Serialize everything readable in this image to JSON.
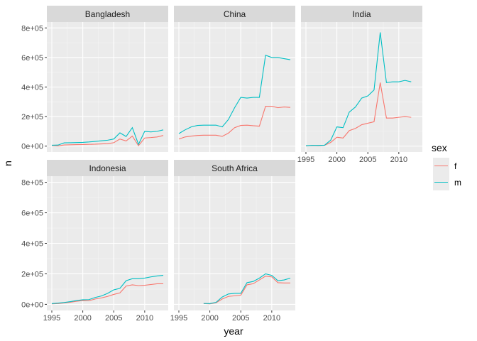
{
  "chart_data": {
    "type": "line",
    "xlabel": "year",
    "ylabel": "n",
    "xlim": [
      1994.2,
      2013.8
    ],
    "ylim": [
      -40000,
      840000
    ],
    "x_ticks": [
      1995,
      2000,
      2005,
      2010
    ],
    "x_tick_labels": [
      "1995",
      "2000",
      "2005",
      "2010"
    ],
    "y_ticks": [
      0,
      200000,
      400000,
      600000,
      800000
    ],
    "y_tick_labels": [
      "0e+00",
      "2e+05",
      "4e+05",
      "6e+05",
      "8e+05"
    ],
    "grid": true,
    "legend": {
      "title": "sex",
      "position": "right",
      "entries": [
        {
          "label": "f",
          "color": "#F8766D"
        },
        {
          "label": "m",
          "color": "#00BFC4"
        }
      ]
    },
    "facets": [
      {
        "name": "Bangladesh",
        "series": [
          {
            "name": "f",
            "color": "#F8766D",
            "x": [
              1995,
              1996,
              1997,
              1998,
              1999,
              2000,
              2001,
              2002,
              2003,
              2004,
              2005,
              2006,
              2007,
              2008,
              2009,
              2010,
              2011,
              2012,
              2013
            ],
            "y": [
              4000,
              2000,
              8000,
              9000,
              10000,
              11000,
              12000,
              13000,
              15000,
              17000,
              23000,
              48000,
              35000,
              68000,
              3000,
              55000,
              58000,
              62000,
              72000
            ]
          },
          {
            "name": "m",
            "color": "#00BFC4",
            "x": [
              1995,
              1996,
              1997,
              1998,
              1999,
              2000,
              2001,
              2002,
              2003,
              2004,
              2005,
              2006,
              2007,
              2008,
              2009,
              2010,
              2011,
              2012,
              2013
            ],
            "y": [
              6000,
              7000,
              22000,
              23000,
              24000,
              25000,
              28000,
              32000,
              36000,
              40000,
              48000,
              90000,
              65000,
              125000,
              12000,
              100000,
              96000,
              100000,
              110000
            ]
          }
        ]
      },
      {
        "name": "China",
        "series": [
          {
            "name": "f",
            "color": "#F8766D",
            "x": [
              1995,
              1996,
              1997,
              1998,
              1999,
              2000,
              2001,
              2002,
              2003,
              2004,
              2005,
              2006,
              2007,
              2008,
              2009,
              2010,
              2011,
              2012,
              2013
            ],
            "y": [
              48000,
              62000,
              68000,
              72000,
              74000,
              74000,
              74000,
              66000,
              88000,
              125000,
              140000,
              142000,
              138000,
              135000,
              270000,
              270000,
              260000,
              265000,
              262000
            ]
          },
          {
            "name": "m",
            "color": "#00BFC4",
            "x": [
              1995,
              1996,
              1997,
              1998,
              1999,
              2000,
              2001,
              2002,
              2003,
              2004,
              2005,
              2006,
              2007,
              2008,
              2009,
              2010,
              2011,
              2012,
              2013
            ],
            "y": [
              85000,
              110000,
              130000,
              140000,
              142000,
              142000,
              142000,
              130000,
              180000,
              260000,
              330000,
              325000,
              330000,
              330000,
              615000,
              600000,
              600000,
              592000,
              585000
            ]
          }
        ]
      },
      {
        "name": "India",
        "series": [
          {
            "name": "f",
            "color": "#F8766D",
            "x": [
              1995,
              1996,
              1997,
              1998,
              1999,
              2000,
              2001,
              2002,
              2003,
              2004,
              2005,
              2006,
              2007,
              2008,
              2009,
              2010,
              2011,
              2012
            ],
            "y": [
              2000,
              4000,
              3000,
              5000,
              25000,
              60000,
              55000,
              105000,
              120000,
              145000,
              155000,
              165000,
              430000,
              190000,
              190000,
              195000,
              200000,
              195000
            ]
          },
          {
            "name": "m",
            "color": "#00BFC4",
            "x": [
              1995,
              1996,
              1997,
              1998,
              1999,
              2000,
              2001,
              2002,
              2003,
              2004,
              2005,
              2006,
              2007,
              2008,
              2009,
              2010,
              2011,
              2012
            ],
            "y": [
              3000,
              5000,
              5000,
              6000,
              40000,
              130000,
              125000,
              230000,
              265000,
              325000,
              340000,
              380000,
              770000,
              430000,
              435000,
              435000,
              445000,
              435000
            ]
          }
        ]
      },
      {
        "name": "Indonesia",
        "series": [
          {
            "name": "f",
            "color": "#F8766D",
            "x": [
              1995,
              1996,
              1997,
              1998,
              1999,
              2000,
              2001,
              2002,
              2003,
              2004,
              2005,
              2006,
              2007,
              2008,
              2009,
              2010,
              2011,
              2012,
              2013
            ],
            "y": [
              3000,
              5000,
              9000,
              14000,
              20000,
              25000,
              24000,
              35000,
              42000,
              52000,
              65000,
              75000,
              120000,
              128000,
              123000,
              125000,
              130000,
              135000,
              135000
            ]
          },
          {
            "name": "m",
            "color": "#00BFC4",
            "x": [
              1995,
              1996,
              1997,
              1998,
              1999,
              2000,
              2001,
              2002,
              2003,
              2004,
              2005,
              2006,
              2007,
              2008,
              2009,
              2010,
              2011,
              2012,
              2013
            ],
            "y": [
              5000,
              8000,
              12000,
              18000,
              25000,
              30000,
              31000,
              45000,
              55000,
              72000,
              95000,
              105000,
              155000,
              168000,
              168000,
              172000,
              180000,
              186000,
              190000
            ]
          }
        ]
      },
      {
        "name": "South Africa",
        "series": [
          {
            "name": "f",
            "color": "#F8766D",
            "x": [
              1999,
              2000,
              2001,
              2002,
              2003,
              2004,
              2005,
              2006,
              2007,
              2008,
              2009,
              2010,
              2011,
              2012,
              2013
            ],
            "y": [
              5000,
              3000,
              10000,
              35000,
              52000,
              56000,
              60000,
              128000,
              135000,
              160000,
              185000,
              180000,
              142000,
              140000,
              140000
            ]
          },
          {
            "name": "m",
            "color": "#00BFC4",
            "x": [
              1999,
              2000,
              2001,
              2002,
              2003,
              2004,
              2005,
              2006,
              2007,
              2008,
              2009,
              2010,
              2011,
              2012,
              2013
            ],
            "y": [
              6000,
              5000,
              13000,
              48000,
              68000,
              72000,
              72000,
              142000,
              150000,
              172000,
              200000,
              190000,
              155000,
              160000,
              172000
            ]
          }
        ]
      }
    ]
  }
}
